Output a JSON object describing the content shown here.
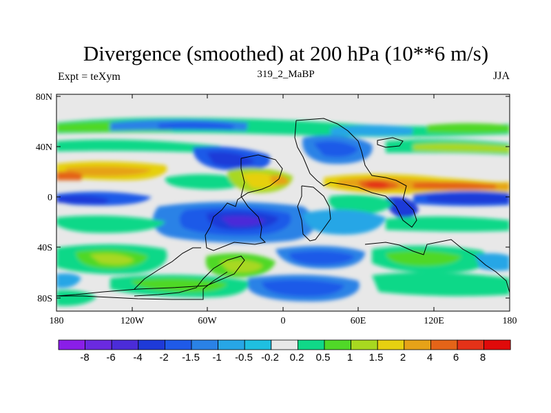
{
  "title": "Divergence (smoothed) at 200 hPa (10**6 m/s)",
  "subtitle_left": "Expt = teXym",
  "subtitle_center": "319_2_MaBP",
  "subtitle_right": "JJA",
  "map": {
    "lon_labels": [
      "180",
      "120W",
      "60W",
      "0",
      "60E",
      "120E",
      "180"
    ],
    "lat_labels": [
      "80N",
      "40N",
      "0",
      "40S",
      "80S"
    ]
  },
  "colorbar": {
    "labels": [
      "-8",
      "-6",
      "-4",
      "-2",
      "-1.5",
      "-1",
      "-0.5",
      "-0.2",
      "0.2",
      "0.5",
      "1",
      "1.5",
      "2",
      "4",
      "6",
      "8"
    ],
    "colors": [
      "#8a1ee8",
      "#6a2ae0",
      "#4b2cd8",
      "#1e3ad8",
      "#1f5ae8",
      "#2a82e6",
      "#27a6e6",
      "#1fbfe0",
      "#e8e8e8",
      "#10d888",
      "#50d828",
      "#a8d820",
      "#e6d010",
      "#e6a218",
      "#e46418",
      "#e43218",
      "#e00a0a"
    ]
  }
}
